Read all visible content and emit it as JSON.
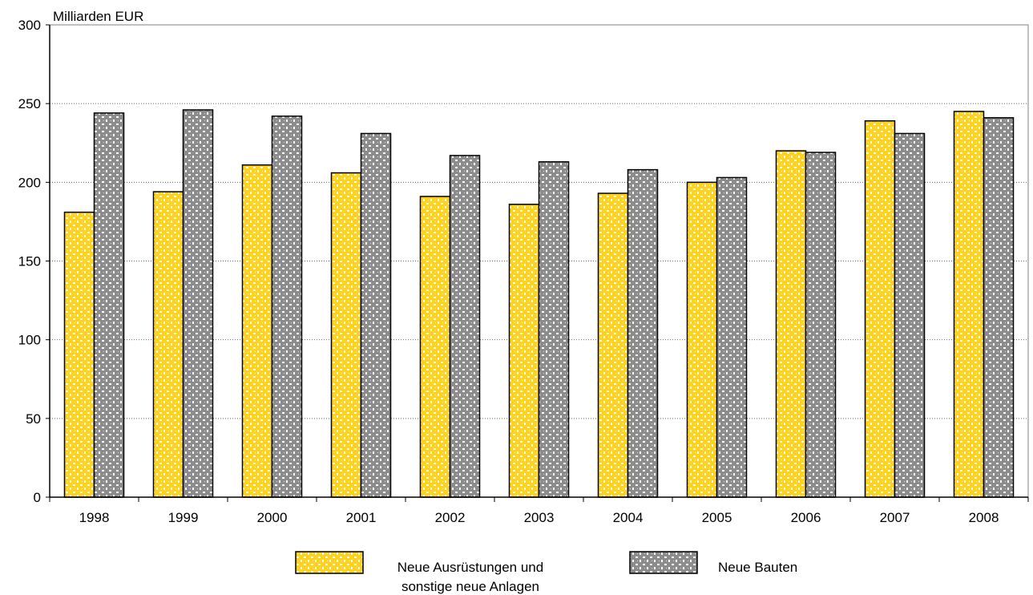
{
  "chart_data": {
    "type": "bar",
    "unit_label": "Milliarden EUR",
    "categories": [
      "1998",
      "1999",
      "2000",
      "2001",
      "2002",
      "2003",
      "2004",
      "2005",
      "2006",
      "2007",
      "2008"
    ],
    "series": [
      {
        "name": "Neue Ausrüstungen und sonstige neue Anlagen",
        "name_lines": [
          "Neue Ausrüstungen und",
          "sonstige neue Anlagen"
        ],
        "pattern": "yellow-dots",
        "base_color": "#FFD21E",
        "dot_color": "#FFFFFF",
        "values": [
          181,
          194,
          211,
          206,
          191,
          186,
          193,
          200,
          220,
          239,
          245
        ]
      },
      {
        "name": "Neue Bauten",
        "name_lines": [
          "Neue Bauten"
        ],
        "pattern": "gray-dots",
        "base_color": "#8C8C8C",
        "dot_color": "#FFFFFF",
        "values": [
          244,
          246,
          242,
          231,
          217,
          213,
          208,
          203,
          219,
          231,
          241
        ]
      }
    ],
    "ylim": [
      0,
      300
    ],
    "yticks": [
      0,
      50,
      100,
      150,
      200,
      250,
      300
    ],
    "grid": "horizontal-dotted",
    "legend_position": "bottom"
  }
}
